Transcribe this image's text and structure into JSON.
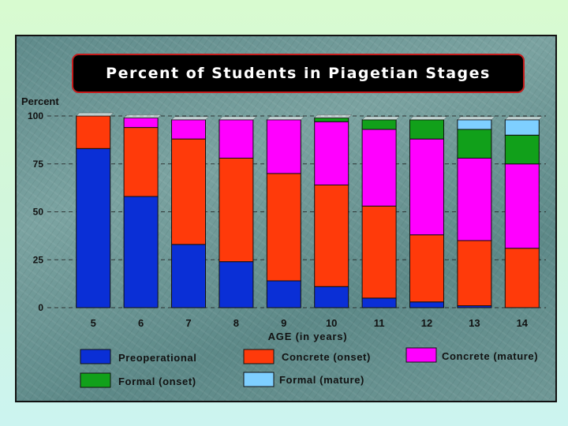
{
  "chart_data": {
    "type": "bar",
    "stacked": true,
    "title": "Percent of Students in Piagetian Stages",
    "ylabel": "Percent",
    "xlabel": "AGE (in years)",
    "categories": [
      "5",
      "6",
      "7",
      "8",
      "9",
      "10",
      "11",
      "12",
      "13",
      "14"
    ],
    "yticks": [
      "0",
      "25",
      "50",
      "75",
      "100"
    ],
    "ylim": [
      0,
      100
    ],
    "grid": "horizontal dashed",
    "series": [
      {
        "name": "Preoperational",
        "color": "#0a2fd6",
        "values": [
          83,
          58,
          33,
          24,
          14,
          11,
          5,
          3,
          1,
          0
        ]
      },
      {
        "name": "Concrete (onset)",
        "color": "#ff3a0a",
        "values": [
          17,
          36,
          55,
          54,
          56,
          53,
          48,
          35,
          34,
          31
        ]
      },
      {
        "name": "Concrete (mature)",
        "color": "#ff00ff",
        "values": [
          0,
          5,
          10,
          20,
          28,
          33,
          40,
          50,
          43,
          44
        ]
      },
      {
        "name": "Formal (onset)",
        "color": "#11a01a",
        "values": [
          0,
          0,
          0,
          0,
          0,
          2,
          5,
          10,
          15,
          15
        ]
      },
      {
        "name": "Formal (mature)",
        "color": "#7ecfff",
        "values": [
          0,
          0,
          0,
          0,
          0,
          0,
          0,
          0,
          5,
          8
        ]
      }
    ],
    "legend_position": "bottom"
  }
}
